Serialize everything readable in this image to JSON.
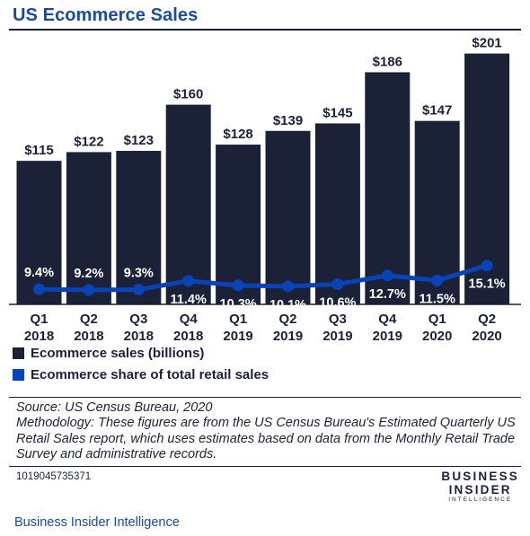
{
  "title": "US Ecommerce Sales",
  "source": "Source: US Census Bureau, 2020",
  "methodology": "Methodology: These figures are from the US Census Bureau's Estimated Quarterly US Retail Sales report, which uses estimates based on data from the Monthly Retail Trade Survey and administrative records.",
  "chart_id": "1019045735371",
  "brand": {
    "line1": "BUSINESS",
    "line2": "INSIDER",
    "line3": "INTELLIGENCE"
  },
  "footer": "Business Insider Intelligence",
  "colors": {
    "bar": "#1b2238",
    "line": "#0a43b8",
    "title": "#1c4a9c"
  },
  "chart_data": {
    "type": "bar",
    "categories": [
      [
        "Q1",
        "2018"
      ],
      [
        "Q2",
        "2018"
      ],
      [
        "Q3",
        "2018"
      ],
      [
        "Q4",
        "2018"
      ],
      [
        "Q1",
        "2019"
      ],
      [
        "Q2",
        "2019"
      ],
      [
        "Q3",
        "2019"
      ],
      [
        "Q4",
        "2019"
      ],
      [
        "Q1",
        "2020"
      ],
      [
        "Q2",
        "2020"
      ]
    ],
    "series": [
      {
        "name": "Ecommerce sales (billions)",
        "type": "bar",
        "values": [
          115,
          122,
          123,
          160,
          128,
          139,
          145,
          186,
          147,
          201
        ],
        "labels": [
          "$115",
          "$122",
          "$123",
          "$160",
          "$128",
          "$139",
          "$145",
          "$186",
          "$147",
          "$201"
        ]
      },
      {
        "name": "Ecommerce share of total retail sales",
        "type": "line",
        "values": [
          9.4,
          9.2,
          9.3,
          11.4,
          10.3,
          10.1,
          10.6,
          12.7,
          11.5,
          15.1
        ],
        "labels": [
          "9.4%",
          "9.2%",
          "9.3%",
          "11.4%",
          "10.3%",
          "10.1%",
          "10.6%",
          "12.7%",
          "11.5%",
          "15.1%"
        ]
      }
    ],
    "legend": [
      "Ecommerce sales (billions)",
      "Ecommerce share of total retail sales"
    ],
    "legend_position": "bottom-left",
    "grid": false
  }
}
